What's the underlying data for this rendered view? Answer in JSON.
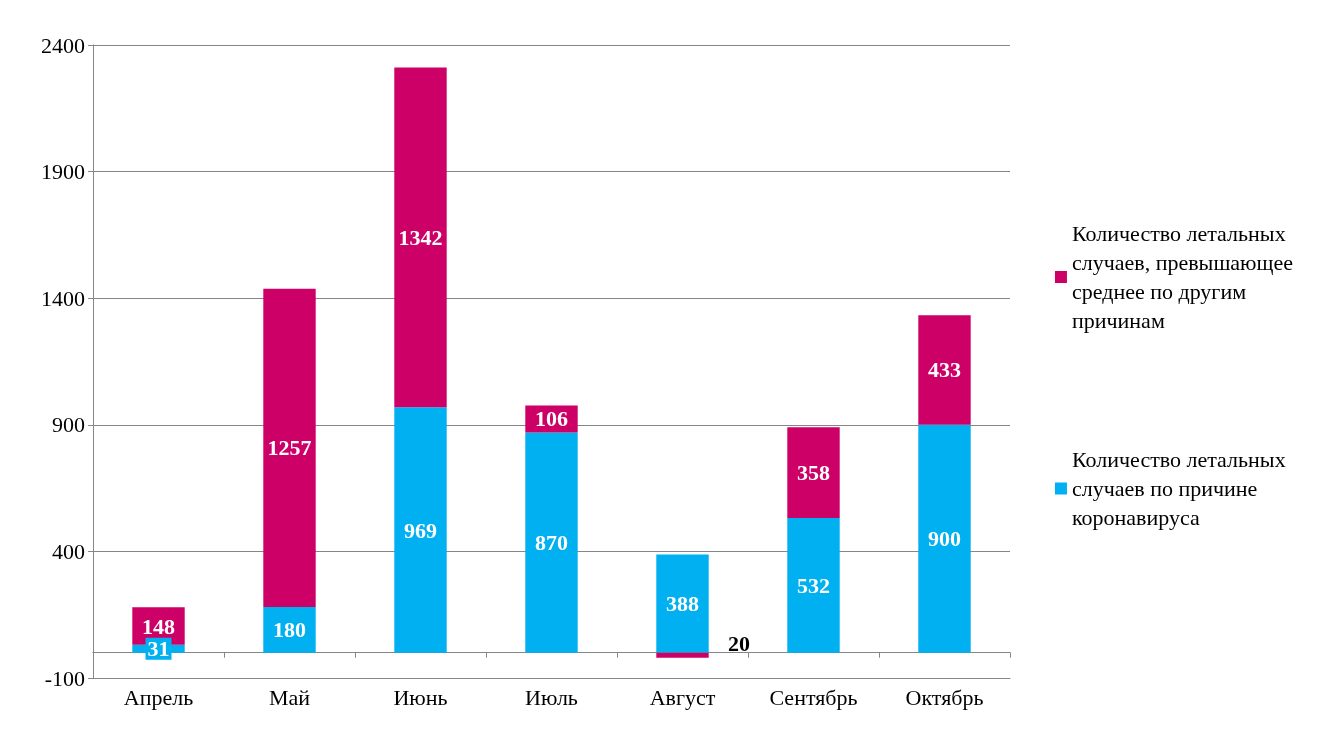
{
  "chart_data": {
    "type": "bar",
    "stacked": true,
    "categories": [
      "Апрель",
      "Май",
      "Июнь",
      "Июль",
      "Август",
      "Сентябрь",
      "Октябрь"
    ],
    "series": [
      {
        "name": "Количество летальных случаев по причине коронавируса",
        "color": "#00b0f0",
        "values": [
          31,
          180,
          969,
          870,
          388,
          532,
          900
        ],
        "value_labels": [
          "31",
          "180",
          "969",
          "870",
          "388",
          "532",
          "900"
        ]
      },
      {
        "name": "Количество летальных случаев, превышающее среднее по другим причинам",
        "color": "#cc0066",
        "values": [
          148,
          1257,
          1342,
          106,
          -20,
          358,
          433
        ],
        "value_labels": [
          "148",
          "1257",
          "1342",
          "106",
          null,
          "358",
          "433"
        ]
      }
    ],
    "annotations": [
      {
        "text": "20",
        "x": "Август",
        "y": -20
      }
    ],
    "ylim": [
      -100,
      2400
    ],
    "yticks": [
      -100,
      400,
      900,
      1400,
      1900,
      2400
    ],
    "grid": "y",
    "legend": "right"
  }
}
